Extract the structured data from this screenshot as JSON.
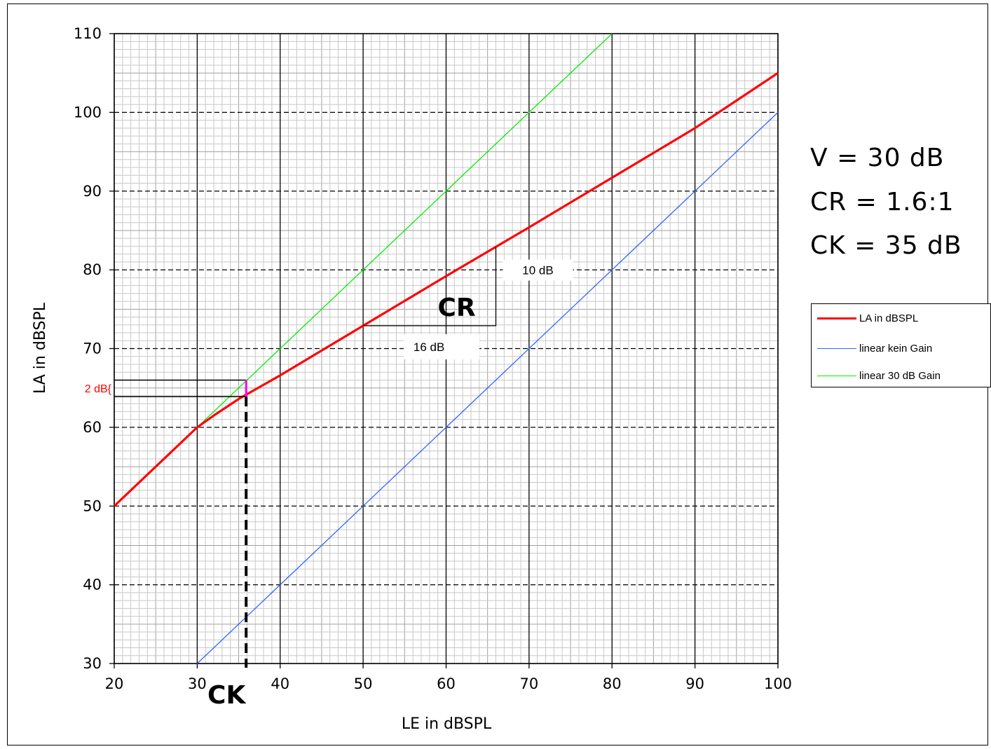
{
  "chart_data": {
    "type": "line",
    "xlabel": "LE in dBSPL",
    "ylabel": "LA in dBSPL",
    "xlim": [
      20,
      100
    ],
    "ylim": [
      30,
      110
    ],
    "x_ticks": [
      20,
      30,
      40,
      50,
      60,
      70,
      80,
      90,
      100
    ],
    "y_ticks": [
      30,
      40,
      50,
      60,
      70,
      80,
      90,
      100,
      110
    ],
    "grid": true,
    "legend_position": "right",
    "series": [
      {
        "name": "LA in dBSPL",
        "color": "#ff0000",
        "x": [
          20,
          30,
          32,
          35,
          40,
          50,
          60,
          70,
          80,
          90,
          100
        ],
        "y": [
          50,
          60,
          61.5,
          63.6,
          66.6,
          72.9,
          79.2,
          85.4,
          91.7,
          98,
          105
        ]
      },
      {
        "name": "linear kein Gain",
        "color": "#3366ff",
        "x": [
          30,
          100
        ],
        "y": [
          30,
          100
        ]
      },
      {
        "name": "linear 30 dB Gain",
        "color": "#00ee00",
        "x": [
          20,
          80
        ],
        "y": [
          50,
          110
        ]
      }
    ],
    "annotations": {
      "cr_label": "CR",
      "cr_dx_label": "16 dB",
      "cr_dy_label": "10 dB",
      "ck_label": "CK",
      "gap_label": "2 dB{",
      "cr_triangle": {
        "x1": 50,
        "x2": 66,
        "y1": 72.9,
        "y2": 82.9
      },
      "ck_x": 35.9,
      "ck_y_top": 66.0,
      "ck_y_bottom": 63.9
    },
    "parameters": [
      "V = 30 dB",
      "CR = 1.6:1",
      "CK = 35 dB"
    ]
  }
}
